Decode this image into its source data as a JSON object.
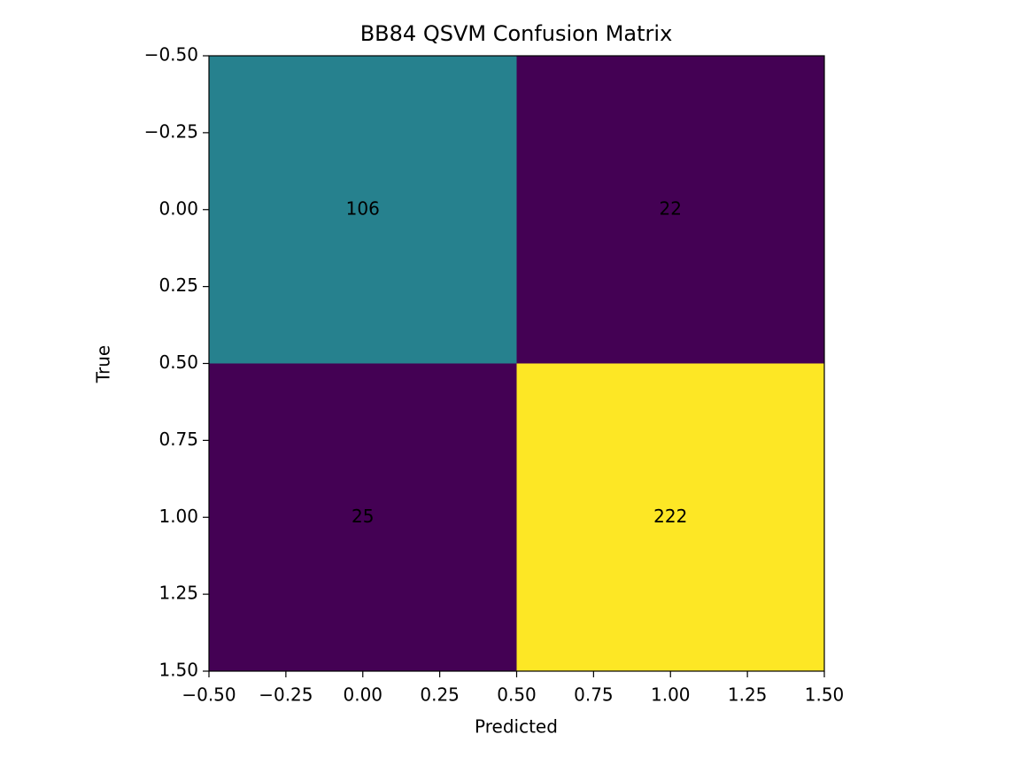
{
  "chart_data": {
    "type": "heatmap",
    "title": "BB84 QSVM Confusion Matrix",
    "x_label": "Predicted",
    "y_label": "True",
    "x": [
      0,
      1
    ],
    "y": [
      0,
      1
    ],
    "values": [
      [
        106,
        22
      ],
      [
        25,
        222
      ]
    ],
    "colors": [
      [
        "#26818e",
        "#440154"
      ],
      [
        "#440154",
        "#fde725"
      ]
    ],
    "xlim": [
      -0.5,
      1.5
    ],
    "ylim": [
      1.5,
      -0.5
    ],
    "xticks": [
      {
        "value": -0.5,
        "label": "−0.50"
      },
      {
        "value": -0.25,
        "label": "−0.25"
      },
      {
        "value": 0,
        "label": "0.00"
      },
      {
        "value": 0.25,
        "label": "0.25"
      },
      {
        "value": 0.5,
        "label": "0.50"
      },
      {
        "value": 0.75,
        "label": "0.75"
      },
      {
        "value": 1,
        "label": "1.00"
      },
      {
        "value": 1.25,
        "label": "1.25"
      },
      {
        "value": 1.5,
        "label": "1.50"
      }
    ],
    "yticks": [
      {
        "value": -0.5,
        "label": "−0.50"
      },
      {
        "value": -0.25,
        "label": "−0.25"
      },
      {
        "value": 0,
        "label": "0.00"
      },
      {
        "value": 0.25,
        "label": "0.25"
      },
      {
        "value": 0.5,
        "label": "0.50"
      },
      {
        "value": 0.75,
        "label": "0.75"
      },
      {
        "value": 1,
        "label": "1.00"
      },
      {
        "value": 1.25,
        "label": "1.25"
      },
      {
        "value": 1.5,
        "label": "1.50"
      }
    ],
    "grid": false
  }
}
